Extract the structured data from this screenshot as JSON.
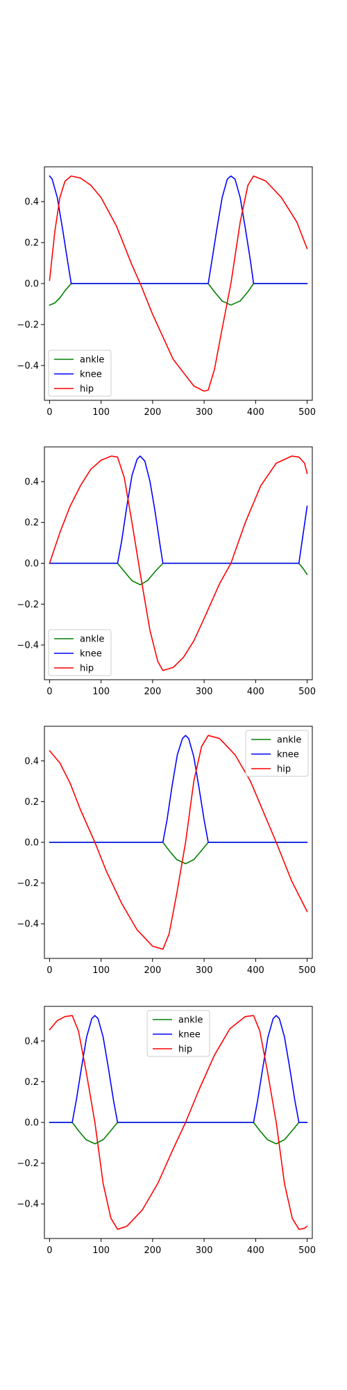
{
  "colors": {
    "ankle": "#008000",
    "knee": "#0000ff",
    "hip": "#ff0000"
  },
  "chart_data": [
    {
      "type": "line",
      "grid": false,
      "legend": "lower-left",
      "xlim": [
        -10,
        510
      ],
      "ylim": [
        -0.57,
        0.57
      ],
      "xticks": [
        0,
        100,
        200,
        300,
        400,
        500
      ],
      "yticks": [
        -0.4,
        -0.2,
        0.0,
        0.2,
        0.4
      ],
      "xtick_labels": [
        "0",
        "100",
        "200",
        "300",
        "400",
        "500"
      ],
      "ytick_labels": [
        "−0.4",
        "−0.2",
        "0.0",
        "0.2",
        "0.4"
      ],
      "series": [
        {
          "name": "ankle",
          "color": "#008000",
          "x": [
            0,
            10,
            20,
            30,
            42,
            308,
            320,
            335,
            352,
            370,
            385,
            396,
            500
          ],
          "y": [
            -0.105,
            -0.095,
            -0.07,
            -0.035,
            0.0,
            0.0,
            -0.04,
            -0.085,
            -0.105,
            -0.085,
            -0.04,
            0.0,
            0.0
          ]
        },
        {
          "name": "knee",
          "color": "#0000ff",
          "x": [
            0,
            5,
            15,
            25,
            35,
            42,
            308,
            315,
            325,
            335,
            345,
            352,
            360,
            370,
            380,
            390,
            396,
            500
          ],
          "y": [
            0.525,
            0.51,
            0.42,
            0.27,
            0.11,
            0.0,
            0.0,
            0.11,
            0.27,
            0.42,
            0.51,
            0.525,
            0.51,
            0.42,
            0.27,
            0.11,
            0.0,
            0.0
          ]
        },
        {
          "name": "hip",
          "color": "#ff0000",
          "x": [
            0,
            10,
            20,
            30,
            42,
            60,
            80,
            100,
            130,
            160,
            176,
            200,
            240,
            280,
            300,
            308,
            320,
            335,
            352,
            370,
            385,
            396,
            420,
            450,
            480,
            500
          ],
          "y": [
            0.015,
            0.25,
            0.42,
            0.5,
            0.525,
            0.515,
            0.48,
            0.42,
            0.28,
            0.09,
            0.0,
            -0.15,
            -0.37,
            -0.5,
            -0.525,
            -0.52,
            -0.42,
            -0.22,
            0.0,
            0.3,
            0.48,
            0.525,
            0.5,
            0.42,
            0.3,
            0.17
          ]
        }
      ]
    },
    {
      "type": "line",
      "grid": false,
      "legend": "lower-left",
      "xlim": [
        -10,
        510
      ],
      "ylim": [
        -0.57,
        0.57
      ],
      "xticks": [
        0,
        100,
        200,
        300,
        400,
        500
      ],
      "yticks": [
        -0.4,
        -0.2,
        0.0,
        0.2,
        0.4
      ],
      "xtick_labels": [
        "0",
        "100",
        "200",
        "300",
        "400",
        "500"
      ],
      "ytick_labels": [
        "−0.4",
        "−0.2",
        "0.0",
        "0.2",
        "0.4"
      ],
      "series": [
        {
          "name": "ankle",
          "color": "#008000",
          "x": [
            0,
            132,
            145,
            160,
            176,
            190,
            205,
            220,
            484,
            492,
            500
          ],
          "y": [
            0.0,
            0.0,
            -0.04,
            -0.085,
            -0.105,
            -0.085,
            -0.04,
            0.0,
            0.0,
            -0.025,
            -0.055
          ]
        },
        {
          "name": "knee",
          "color": "#0000ff",
          "x": [
            0,
            132,
            140,
            150,
            160,
            170,
            176,
            185,
            195,
            205,
            215,
            220,
            484,
            492,
            500
          ],
          "y": [
            0.0,
            0.0,
            0.11,
            0.28,
            0.43,
            0.51,
            0.525,
            0.5,
            0.4,
            0.25,
            0.08,
            0.0,
            0.0,
            0.14,
            0.28
          ]
        },
        {
          "name": "hip",
          "color": "#ff0000",
          "x": [
            0,
            20,
            40,
            60,
            80,
            100,
            120,
            132,
            145,
            160,
            176,
            195,
            210,
            220,
            240,
            260,
            280,
            300,
            330,
            352,
            380,
            410,
            440,
            470,
            484,
            495,
            500
          ],
          "y": [
            0.0,
            0.15,
            0.28,
            0.38,
            0.46,
            0.505,
            0.525,
            0.52,
            0.42,
            0.2,
            -0.05,
            -0.33,
            -0.48,
            -0.525,
            -0.51,
            -0.46,
            -0.38,
            -0.27,
            -0.1,
            0.0,
            0.2,
            0.38,
            0.49,
            0.525,
            0.52,
            0.49,
            0.44
          ]
        }
      ]
    },
    {
      "type": "line",
      "grid": false,
      "legend": "top-right",
      "xlim": [
        -10,
        510
      ],
      "ylim": [
        -0.57,
        0.57
      ],
      "xticks": [
        0,
        100,
        200,
        300,
        400,
        500
      ],
      "yticks": [
        -0.4,
        -0.2,
        0.0,
        0.2,
        0.4
      ],
      "xtick_labels": [
        "0",
        "100",
        "200",
        "300",
        "400",
        "500"
      ],
      "ytick_labels": [
        "−0.4",
        "−0.2",
        "0.0",
        "0.2",
        "0.4"
      ],
      "series": [
        {
          "name": "ankle",
          "color": "#008000",
          "x": [
            0,
            220,
            232,
            247,
            264,
            280,
            295,
            308,
            500
          ],
          "y": [
            0.0,
            0.0,
            -0.04,
            -0.085,
            -0.105,
            -0.085,
            -0.04,
            0.0,
            0.0
          ]
        },
        {
          "name": "knee",
          "color": "#0000ff",
          "x": [
            0,
            220,
            228,
            238,
            248,
            258,
            264,
            270,
            280,
            290,
            300,
            308,
            500
          ],
          "y": [
            0.0,
            0.0,
            0.11,
            0.28,
            0.43,
            0.51,
            0.525,
            0.51,
            0.42,
            0.27,
            0.11,
            0.0,
            0.0
          ]
        },
        {
          "name": "hip",
          "color": "#ff0000",
          "x": [
            0,
            20,
            40,
            60,
            88,
            110,
            140,
            170,
            200,
            220,
            232,
            247,
            264,
            280,
            295,
            308,
            330,
            360,
            390,
            420,
            440,
            470,
            500
          ],
          "y": [
            0.45,
            0.39,
            0.29,
            0.16,
            0.0,
            -0.14,
            -0.3,
            -0.43,
            -0.51,
            -0.525,
            -0.45,
            -0.25,
            0.0,
            0.3,
            0.47,
            0.525,
            0.51,
            0.43,
            0.3,
            0.12,
            0.0,
            -0.19,
            -0.34
          ]
        }
      ]
    },
    {
      "type": "line",
      "grid": false,
      "legend": "upper-center",
      "xlim": [
        -10,
        510
      ],
      "ylim": [
        -0.57,
        0.57
      ],
      "xticks": [
        0,
        100,
        200,
        300,
        400,
        500
      ],
      "yticks": [
        -0.4,
        -0.2,
        0.0,
        0.2,
        0.4
      ],
      "xtick_labels": [
        "0",
        "100",
        "200",
        "300",
        "400",
        "500"
      ],
      "ytick_labels": [
        "−0.4",
        "−0.2",
        "0.0",
        "0.2",
        "0.4"
      ],
      "series": [
        {
          "name": "ankle",
          "color": "#008000",
          "x": [
            0,
            44,
            56,
            71,
            88,
            104,
            119,
            132,
            396,
            408,
            423,
            440,
            456,
            471,
            484,
            500
          ],
          "y": [
            0.0,
            0.0,
            -0.04,
            -0.085,
            -0.105,
            -0.085,
            -0.04,
            0.0,
            0.0,
            -0.04,
            -0.085,
            -0.105,
            -0.085,
            -0.04,
            0.0,
            0.0
          ]
        },
        {
          "name": "knee",
          "color": "#0000ff",
          "x": [
            0,
            44,
            52,
            62,
            72,
            82,
            88,
            94,
            104,
            114,
            124,
            132,
            396,
            404,
            414,
            424,
            434,
            440,
            446,
            456,
            466,
            476,
            484,
            500
          ],
          "y": [
            0.0,
            0.0,
            0.11,
            0.27,
            0.42,
            0.51,
            0.525,
            0.51,
            0.42,
            0.27,
            0.11,
            0.0,
            0.0,
            0.11,
            0.27,
            0.42,
            0.51,
            0.525,
            0.51,
            0.42,
            0.27,
            0.11,
            0.0,
            0.0
          ]
        },
        {
          "name": "hip",
          "color": "#ff0000",
          "x": [
            0,
            15,
            30,
            44,
            56,
            71,
            88,
            104,
            119,
            132,
            150,
            180,
            210,
            240,
            264,
            290,
            320,
            350,
            380,
            396,
            408,
            423,
            440,
            456,
            471,
            484,
            495,
            500
          ],
          "y": [
            0.455,
            0.5,
            0.52,
            0.525,
            0.45,
            0.25,
            0.0,
            -0.3,
            -0.47,
            -0.525,
            -0.51,
            -0.43,
            -0.3,
            -0.13,
            0.0,
            0.16,
            0.33,
            0.46,
            0.52,
            0.525,
            0.45,
            0.25,
            0.0,
            -0.3,
            -0.47,
            -0.525,
            -0.52,
            -0.51
          ]
        }
      ]
    }
  ]
}
